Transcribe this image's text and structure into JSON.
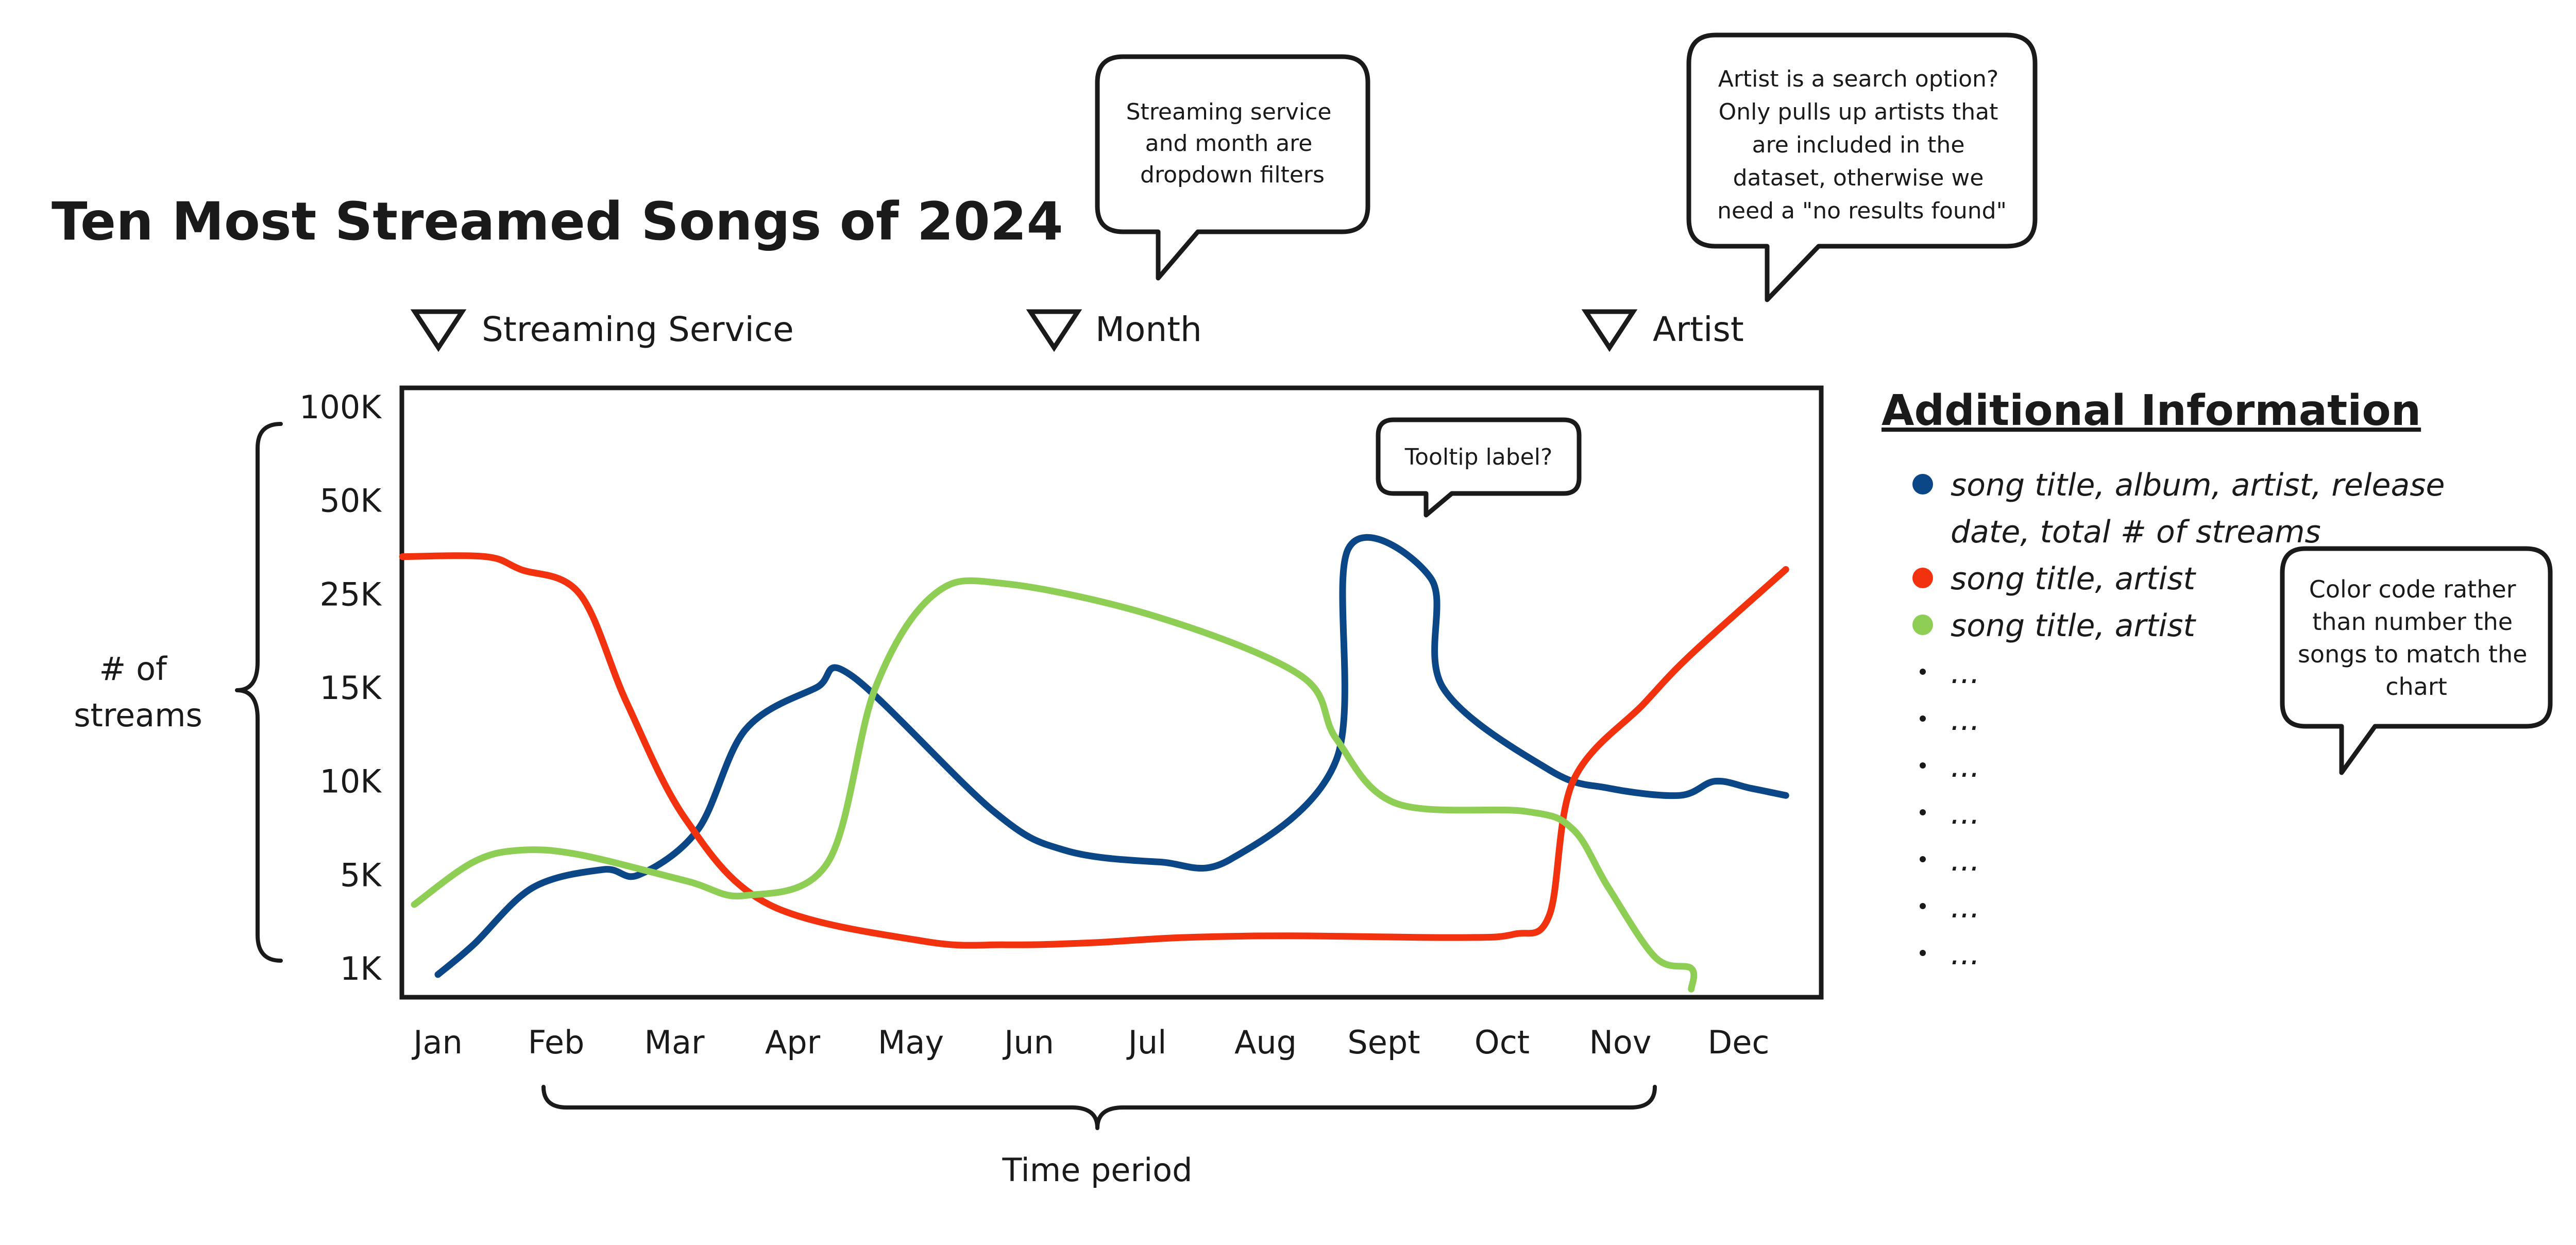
{
  "chart_data": {
    "type": "line",
    "title": "Ten Most Streamed Songs of 2024",
    "xlabel": "Time period",
    "ylabel": "# of streams",
    "categories": [
      "Jan",
      "Feb",
      "Mar",
      "Apr",
      "May",
      "Jun",
      "Jul",
      "Aug",
      "Sept",
      "Oct",
      "Nov",
      "Dec"
    ],
    "y_tick_labels": [
      "100K",
      "50K",
      "25K",
      "15K",
      "10K",
      "5K",
      "1K"
    ],
    "y_scale": "ordinal (tick labels evenly spaced)",
    "grid": false,
    "legend": "right (Additional Information list)",
    "series": [
      {
        "color": "#0b4686",
        "x": [
          "Jan",
          "Jan",
          "Feb",
          "Feb",
          "Mar",
          "Mar",
          "Apr",
          "Apr",
          "May",
          "Jun",
          "Jun",
          "Jul",
          "Aug",
          "Aug",
          "Sept",
          "Sept",
          "Oct",
          "Oct",
          "Nov",
          "Nov",
          "Dec",
          "Dec",
          "Dec"
        ],
        "x_offset": [
          0,
          0.3,
          -0.2,
          0.4,
          -0.3,
          0.2,
          -0.4,
          0.2,
          -0.5,
          -0.3,
          0.3,
          0.1,
          -0.3,
          0.6,
          -0.3,
          0.4,
          -0.5,
          0.4,
          -0.1,
          0.5,
          -0.2,
          0.1,
          0.4
        ],
        "y": [
          900,
          1500,
          4000,
          5200,
          5000,
          7000,
          12500,
          15000,
          16000,
          8000,
          6000,
          5500,
          5600,
          11000,
          35000,
          28000,
          15000,
          10500,
          9500,
          9000,
          10000,
          9500,
          9000
        ]
      },
      {
        "color": "#f2320f",
        "x": [
          "Jan",
          "Jan",
          "Feb",
          "Feb",
          "Mar",
          "Mar",
          "Apr",
          "May",
          "Jun",
          "Jun",
          "Jul",
          "Aug",
          "Sept",
          "Oct",
          "Oct",
          "Nov",
          "Nov",
          "Dec",
          "Dec"
        ],
        "x_offset": [
          -0.3,
          0.4,
          -0.3,
          0.2,
          -0.4,
          0.1,
          -0.2,
          0.1,
          -0.2,
          0.5,
          0.3,
          0.2,
          0.6,
          0.1,
          0.4,
          -0.4,
          0.2,
          -0.4,
          0.4
        ],
        "y": [
          33000,
          33000,
          30000,
          25000,
          14000,
          7500,
          3000,
          1600,
          1500,
          1550,
          1700,
          1750,
          1700,
          1800,
          2500,
          10000,
          14000,
          18000,
          30000
        ]
      },
      {
        "color": "#8fce55",
        "x": [
          "Jan",
          "Jan",
          "Feb",
          "Feb",
          "Mar",
          "Apr",
          "Apr",
          "May",
          "May",
          "Jun",
          "Jul",
          "Aug",
          "Aug",
          "Sept",
          "Oct",
          "Oct",
          "Nov",
          "Nov",
          "Nov",
          "Dec"
        ],
        "x_offset": [
          -0.2,
          0.3,
          -0.3,
          0.2,
          0.1,
          -0.4,
          0.3,
          -0.3,
          0.2,
          -0.2,
          0.1,
          0.3,
          0.6,
          0.1,
          0.2,
          0.6,
          -0.1,
          0.3,
          0.6,
          -0.4
        ],
        "y": [
          3000,
          5500,
          6000,
          5800,
          4500,
          3500,
          5500,
          15000,
          25000,
          27000,
          22000,
          16000,
          12000,
          8500,
          8000,
          7000,
          4000,
          1200,
          1000,
          700
        ]
      }
    ]
  },
  "title": "Ten Most Streamed Songs of 2024",
  "filters": [
    {
      "label": "Streaming Service"
    },
    {
      "label": "Month"
    },
    {
      "label": "Artist"
    }
  ],
  "callouts": {
    "filters": [
      "Streaming service",
      "and month are",
      "dropdown filters"
    ],
    "artist": [
      "Artist is a search option?",
      "Only pulls up artists that",
      "are included in the",
      "dataset, otherwise we",
      "need a \"no results found\""
    ],
    "tooltip": [
      "Tooltip label?"
    ],
    "color_code": [
      "Color code rather",
      "than number the",
      "songs to match the",
      "chart"
    ]
  },
  "info": {
    "title": "Additional Information",
    "items": [
      {
        "color": "#0b4686",
        "lines": [
          "song title, album, artist, release",
          "date, total # of streams"
        ]
      },
      {
        "color": "#f2320f",
        "lines": [
          "song title, artist"
        ]
      },
      {
        "color": "#8fce55",
        "lines": [
          "song title, artist"
        ]
      },
      {
        "lines": [
          "..."
        ]
      },
      {
        "lines": [
          "..."
        ]
      },
      {
        "lines": [
          "..."
        ]
      },
      {
        "lines": [
          "..."
        ]
      },
      {
        "lines": [
          "..."
        ]
      },
      {
        "lines": [
          "..."
        ]
      },
      {
        "lines": [
          "..."
        ]
      }
    ]
  },
  "y_axis_title": [
    "# of",
    "streams"
  ],
  "x_axis_title": "Time period",
  "colors": {
    "blue": "#0b4686",
    "red": "#f2320f",
    "green": "#8fce55",
    "ink": "#1a1a1a"
  }
}
